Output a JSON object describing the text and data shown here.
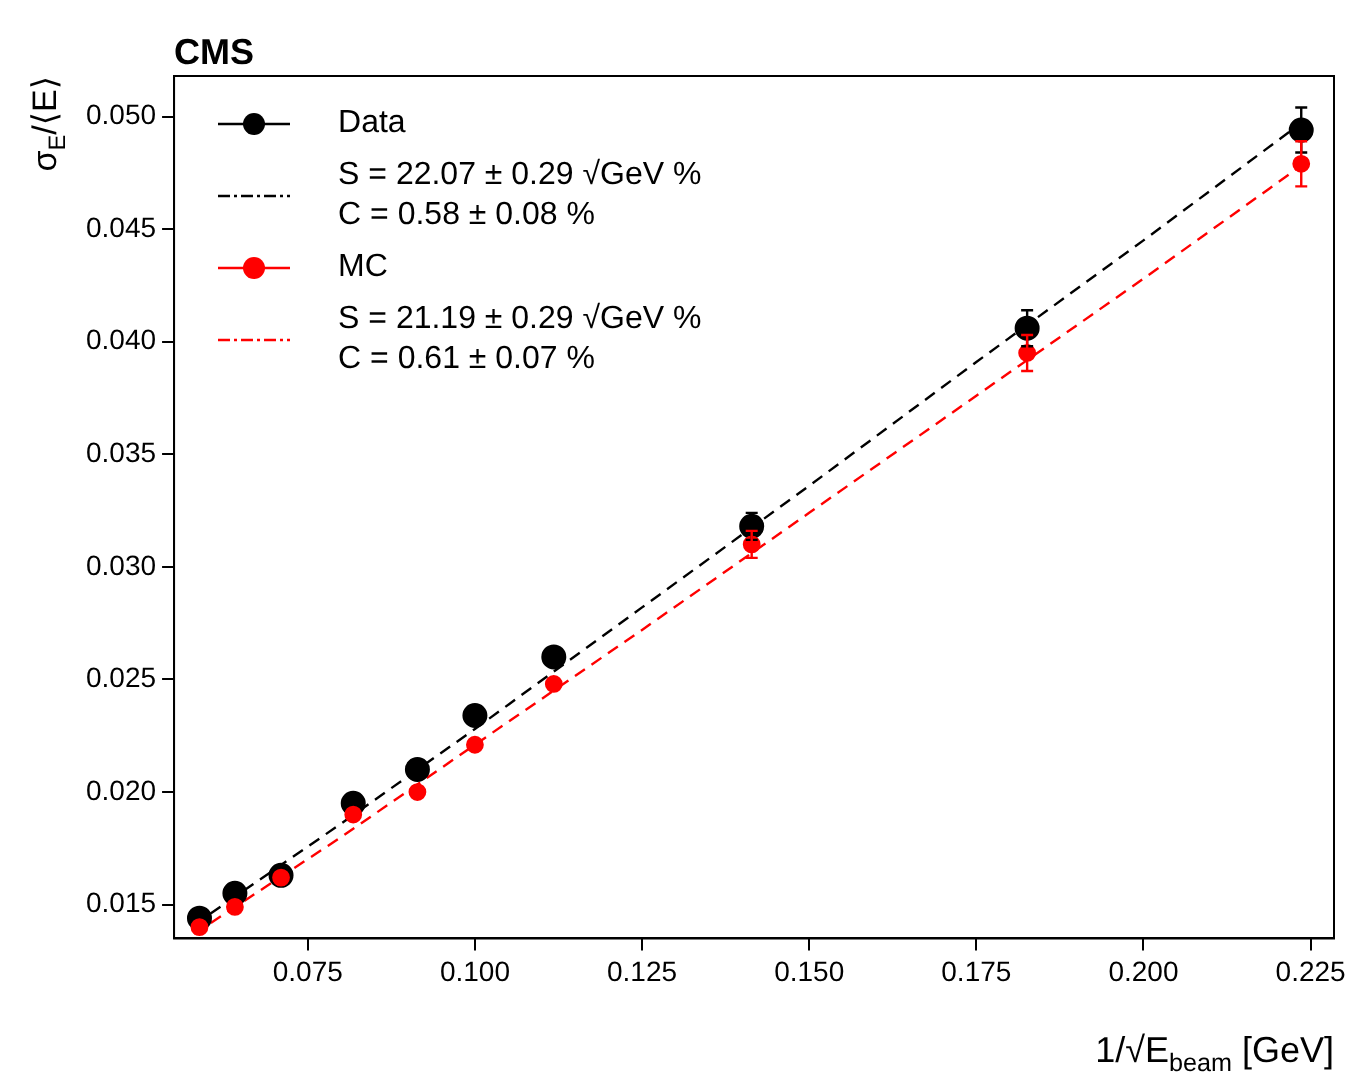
{
  "chart_data": {
    "type": "scatter",
    "title": "CMS",
    "xlabel": "1/√E$_{beam}$ [GeV]",
    "ylabel": "σ$_{E}$/⟨E⟩",
    "xlim": [
      0.055,
      0.2285
    ],
    "ylim": [
      0.0135,
      0.0518
    ],
    "xticks": [
      {
        "value": 0.075,
        "label": "0.075"
      },
      {
        "value": 0.1,
        "label": "0.100"
      },
      {
        "value": 0.125,
        "label": "0.125"
      },
      {
        "value": 0.15,
        "label": "0.150"
      },
      {
        "value": 0.175,
        "label": "0.175"
      },
      {
        "value": 0.2,
        "label": "0.200"
      },
      {
        "value": 0.225,
        "label": "0.225"
      }
    ],
    "yticks": [
      {
        "value": 0.015,
        "label": "0.015"
      },
      {
        "value": 0.02,
        "label": "0.020"
      },
      {
        "value": 0.025,
        "label": "0.025"
      },
      {
        "value": 0.03,
        "label": "0.030"
      },
      {
        "value": 0.035,
        "label": "0.035"
      },
      {
        "value": 0.04,
        "label": "0.040"
      },
      {
        "value": 0.045,
        "label": "0.045"
      },
      {
        "value": 0.05,
        "label": "0.050"
      }
    ],
    "grid": false,
    "legend": "top left",
    "series": [
      {
        "name": "Data",
        "type": "scatter",
        "marker": "circle",
        "color": "#000000",
        "x": [
          0.0588,
          0.0641,
          0.071,
          0.0818,
          0.0914,
          0.1,
          0.1118,
          0.1414,
          0.1826,
          0.2236
        ],
        "values": [
          0.0144,
          0.0155,
          0.0163,
          0.0195,
          0.021,
          0.0234,
          0.026,
          0.0318,
          0.0406,
          0.0494
        ],
        "errors": [
          null,
          null,
          null,
          null,
          null,
          null,
          null,
          0.0006,
          0.0008,
          0.001
        ]
      },
      {
        "name": "S = 22.07 ± 0.29 √GeV %\nC = 0.58 ± 0.08 %",
        "type": "line",
        "line_style": "dashed",
        "color": "#000000",
        "x": [
          0.058,
          0.08,
          0.1,
          0.125,
          0.15,
          0.175,
          0.2,
          0.224
        ],
        "values": [
          0.0141,
          0.0186,
          0.0228,
          0.0282,
          0.0336,
          0.0391,
          0.0445,
          0.0498
        ]
      },
      {
        "name": "MC",
        "type": "scatter",
        "marker": "circle",
        "color": "#ff0000",
        "x": [
          0.0588,
          0.0641,
          0.071,
          0.0818,
          0.0914,
          0.1,
          0.1118,
          0.1414,
          0.1826,
          0.2236
        ],
        "values": [
          0.014,
          0.0149,
          0.0162,
          0.019,
          0.02,
          0.0221,
          0.0248,
          0.031,
          0.0395,
          0.0479
        ],
        "errors": [
          null,
          null,
          null,
          null,
          null,
          null,
          null,
          0.0006,
          0.0008,
          0.001
        ]
      },
      {
        "name": "S = 21.19 ± 0.29 √GeV %\nC = 0.61 ± 0.07 %",
        "type": "line",
        "line_style": "dashed",
        "color": "#ff0000",
        "x": [
          0.058,
          0.08,
          0.1,
          0.125,
          0.15,
          0.175,
          0.2,
          0.224
        ],
        "values": [
          0.0137,
          0.018,
          0.0221,
          0.0272,
          0.0324,
          0.0376,
          0.0428,
          0.0479
        ]
      }
    ]
  }
}
